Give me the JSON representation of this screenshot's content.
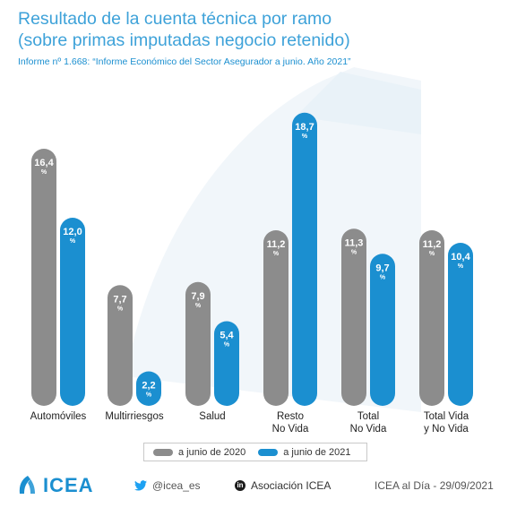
{
  "header": {
    "title_line1": "Resultado de la cuenta técnica por ramo",
    "title_line2": "(sobre primas imputadas negocio retenido)",
    "subtitle": "Informe nº 1.668: “Informe Económico del Sector Asegurador a junio. Año 2021”"
  },
  "colors": {
    "series_2020": "#8c8c8c",
    "series_2021": "#1b8fd0",
    "title": "#3ea2d9",
    "background_shape": "#eef4f9"
  },
  "chart_data": {
    "type": "bar",
    "categories": [
      [
        "Automóviles"
      ],
      [
        "Multirriesgos"
      ],
      [
        "Salud"
      ],
      [
        "Resto",
        "No Vida"
      ],
      [
        "Total",
        "No Vida"
      ],
      [
        "Total Vida",
        "y No Vida"
      ]
    ],
    "series": [
      {
        "name": "a junio de 2020",
        "values": [
          16.4,
          7.7,
          7.9,
          11.2,
          11.3,
          11.2
        ],
        "labels": [
          "16,4",
          "7,7",
          "7,9",
          "11,2",
          "11,3",
          "11,2"
        ]
      },
      {
        "name": "a junio de 2021",
        "values": [
          12.0,
          2.2,
          5.4,
          18.7,
          9.7,
          10.4
        ],
        "labels": [
          "12,0",
          "2,2",
          "5,4",
          "18,7",
          "9,7",
          "10,4"
        ]
      }
    ],
    "unit": "%",
    "ylim": [
      0,
      19
    ],
    "grid": false,
    "legend_position": "bottom"
  },
  "legend": {
    "item_2020": "a junio de 2020",
    "item_2021": "a junio de 2021"
  },
  "footer": {
    "logo_text": "ICEA",
    "logo_icon": "icea-logo-icon",
    "twitter_icon": "twitter-icon",
    "twitter": "@icea_es",
    "linkedin_icon": "linkedin-icon",
    "linkedin": "Asociación ICEA",
    "date": "ICEA al Día - 29/09/2021"
  }
}
